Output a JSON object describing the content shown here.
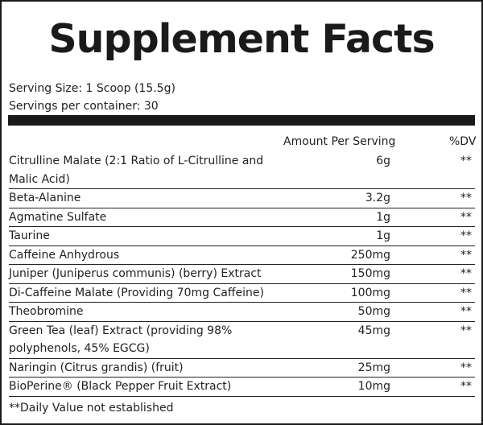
{
  "title": "Supplement Facts",
  "serving_size": "Serving Size: 1 Scoop (15.5g)",
  "servings_per_container": "Servings per container: 30",
  "header": {
    "amount": "Amount Per Serving",
    "dv": "%DV"
  },
  "ingredients": [
    {
      "name": "Citrulline Malate (2:1 Ratio of L-Citrulline and Malic Acid)",
      "amount": "6g",
      "dv": "**"
    },
    {
      "name": "Beta-Alanine",
      "amount": "3.2g",
      "dv": "**"
    },
    {
      "name": "Agmatine Sulfate",
      "amount": "1g",
      "dv": "**"
    },
    {
      "name": "Taurine",
      "amount": "1g",
      "dv": "**"
    },
    {
      "name": "Caffeine Anhydrous",
      "amount": "250mg",
      "dv": "**"
    },
    {
      "name": "Juniper (Juniperus communis) (berry) Extract",
      "amount": "150mg",
      "dv": "**"
    },
    {
      "name": "Di-Caffeine Malate (Providing 70mg Caffeine)",
      "amount": "100mg",
      "dv": "**"
    },
    {
      "name": "Theobromine",
      "amount": "50mg",
      "dv": "**"
    },
    {
      "name": "Green Tea (leaf) Extract (providing 98% polyphenols, 45% EGCG)",
      "amount": "45mg",
      "dv": "**"
    },
    {
      "name": "Naringin (Citrus grandis) (fruit)",
      "amount": "25mg",
      "dv": "**"
    },
    {
      "name": "BioPerine® (Black Pepper Fruit Extract)",
      "amount": "10mg",
      "dv": "**"
    }
  ],
  "footnote": "**Daily Value not established"
}
